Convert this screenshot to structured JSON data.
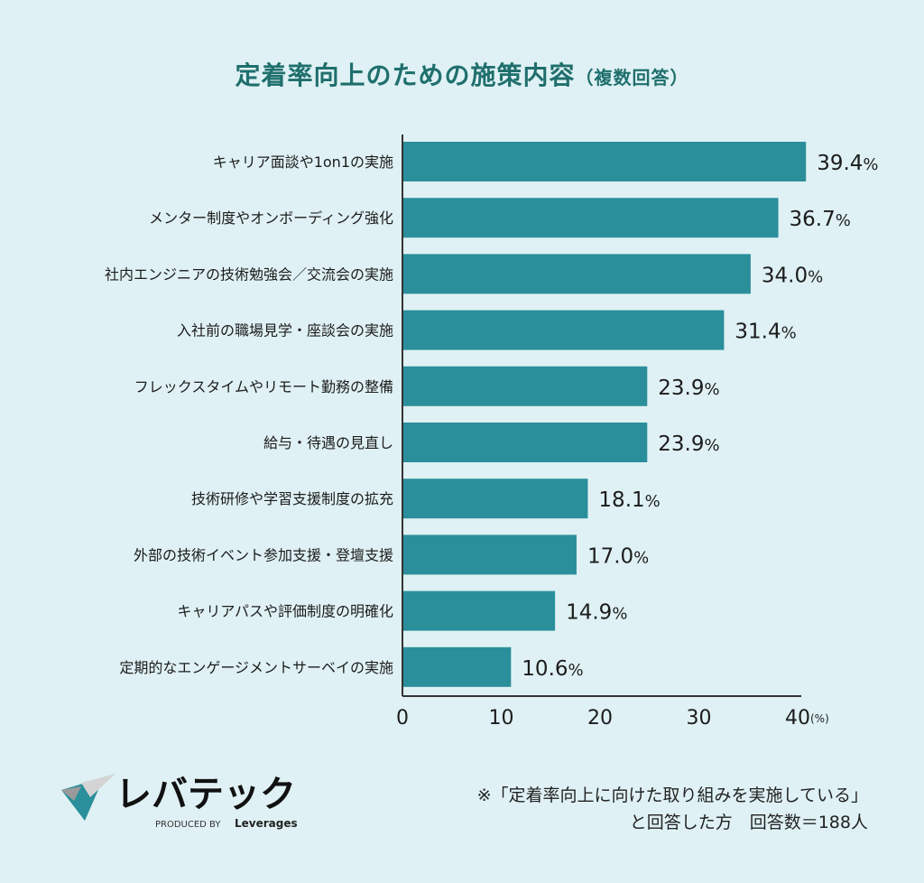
{
  "title": "定着率向上のための施策内容",
  "subtitle": "（複数回答）",
  "chart_data": {
    "type": "bar",
    "orientation": "horizontal",
    "title": "定着率向上のための施策内容（複数回答）",
    "categories": [
      "キャリア面談や1on1の実施",
      "メンター制度やオンボーディング強化",
      "社内エンジニアの技術勉強会／交流会の実施",
      "入社前の職場見学・座談会の実施",
      "フレックスタイムやリモート勤務の整備",
      "給与・待遇の見直し",
      "技術研修や学習支援制度の拡充",
      "外部の技術イベント参加支援・登壇支援",
      "キャリアパスや評価制度の明確化",
      "定期的なエンゲージメントサーベイの実施"
    ],
    "values": [
      39.4,
      36.7,
      34.0,
      31.4,
      23.9,
      23.9,
      18.1,
      17.0,
      14.9,
      10.6
    ],
    "data_labels": [
      "39.4%",
      "36.7%",
      "34.0%",
      "31.4%",
      "23.9%",
      "23.9%",
      "18.1%",
      "17.0%",
      "14.9%",
      "10.6%"
    ],
    "xlim": [
      0,
      40
    ],
    "xticks": [
      "0",
      "10",
      "20",
      "30",
      "40"
    ],
    "xunit": "(%)",
    "bar_color": "#2a8f9b",
    "grid": false
  },
  "logo": {
    "text": "レバテック",
    "produced_by": "PRODUCED BY",
    "brand": "Leverages"
  },
  "note": {
    "line1": "※「定着率向上に向けた取り組みを実施している」",
    "line2": "と回答した方　回答数＝188人"
  }
}
